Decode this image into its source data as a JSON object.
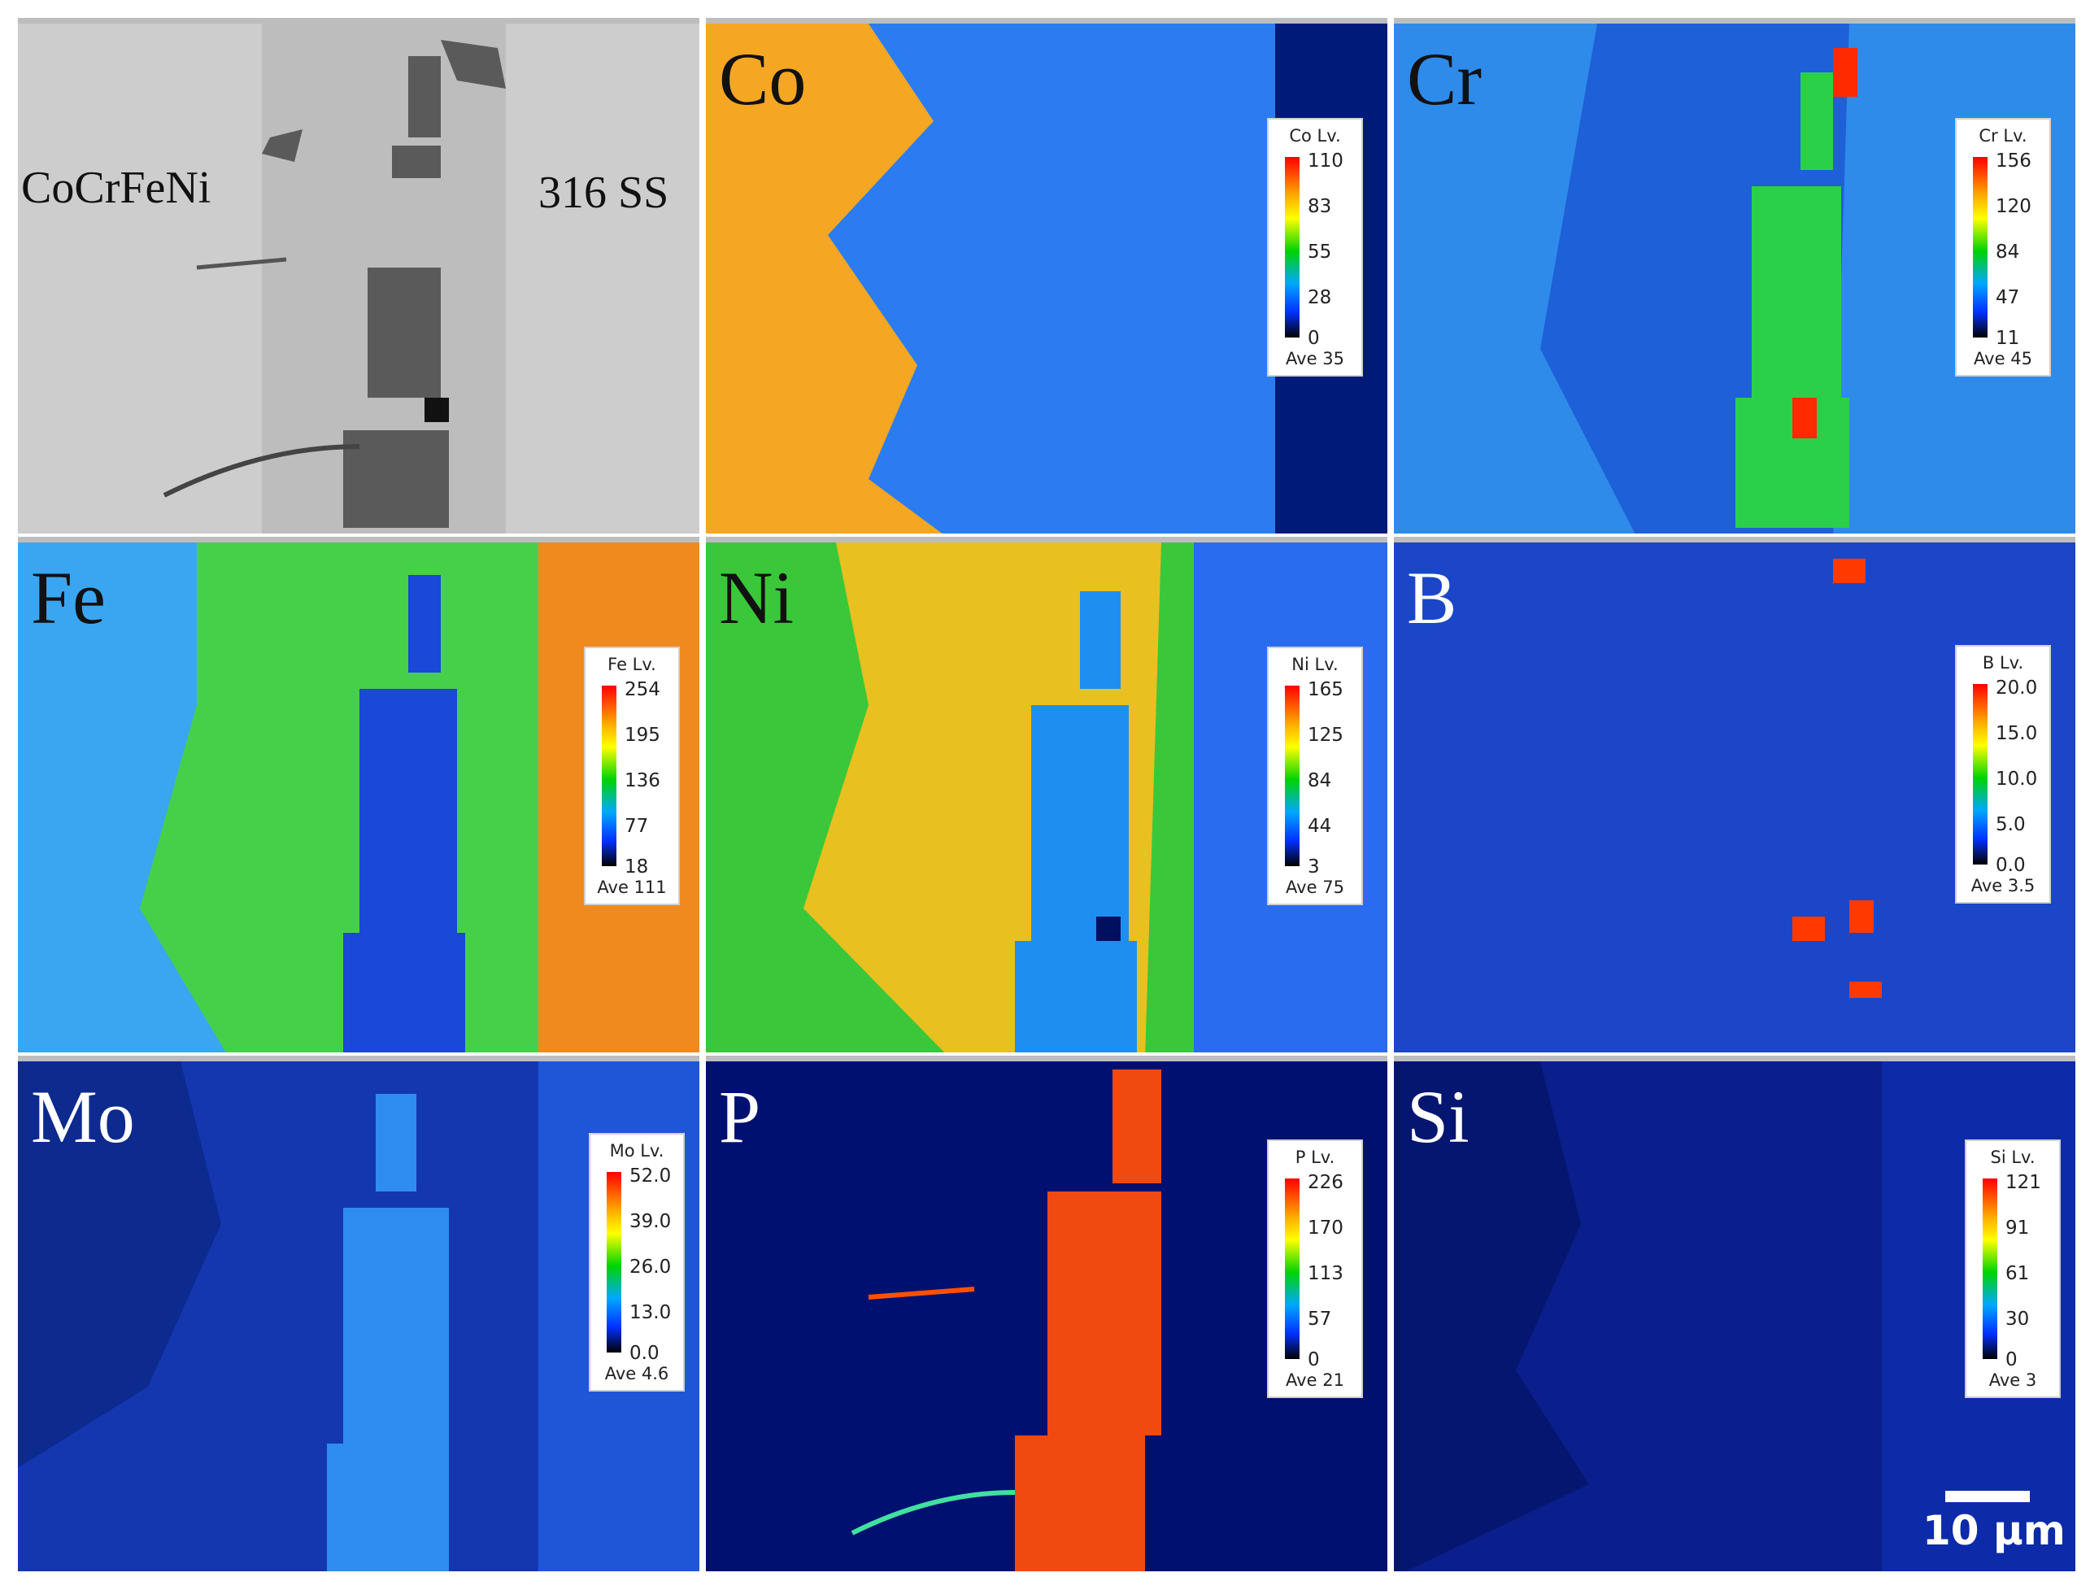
{
  "sem": {
    "left_label": "CoCrFeNi",
    "right_label": "316 SS"
  },
  "maps": [
    {
      "element": "Co",
      "legend_title": "Co  Lv.",
      "ticks": [
        "110",
        "83",
        "55",
        "28",
        "0"
      ],
      "ave": "Ave 35"
    },
    {
      "element": "Cr",
      "legend_title": "Cr  Lv.",
      "ticks": [
        "156",
        "120",
        "84",
        "47",
        "11"
      ],
      "ave": "Ave 45"
    },
    {
      "element": "Fe",
      "legend_title": "Fe  Lv.",
      "ticks": [
        "254",
        "195",
        "136",
        "77",
        "18"
      ],
      "ave": "Ave 111"
    },
    {
      "element": "Ni",
      "legend_title": "Ni  Lv.",
      "ticks": [
        "165",
        "125",
        "84",
        "44",
        "3"
      ],
      "ave": "Ave 75"
    },
    {
      "element": "B",
      "legend_title": "B  Lv.",
      "ticks": [
        "20.0",
        "15.0",
        "10.0",
        "5.0",
        "0.0"
      ],
      "ave": "Ave 3.5"
    },
    {
      "element": "Mo",
      "legend_title": "Mo  Lv.",
      "ticks": [
        "52.0",
        "39.0",
        "26.0",
        "13.0",
        "0.0"
      ],
      "ave": "Ave 4.6"
    },
    {
      "element": "P",
      "legend_title": "P  Lv.",
      "ticks": [
        "226",
        "170",
        "113",
        "57",
        "0"
      ],
      "ave": "Ave 21"
    },
    {
      "element": "Si",
      "legend_title": "Si  Lv.",
      "ticks": [
        "121",
        "91",
        "61",
        "30",
        "0"
      ],
      "ave": "Ave 3"
    }
  ],
  "scale_bar": {
    "label": "10 μm"
  },
  "colors": {
    "sem_gray": "#c8c8c8",
    "map_blue": "#1f5fff",
    "dark_blue": "#001a80"
  }
}
